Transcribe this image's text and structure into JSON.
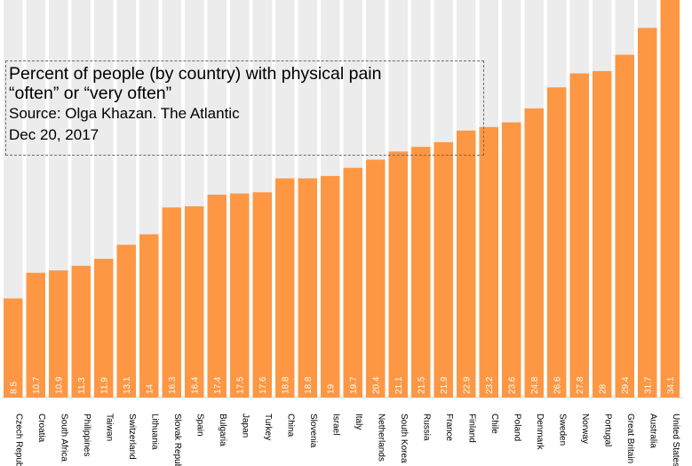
{
  "chart_data": {
    "type": "bar",
    "title_lines": [
      "Percent of people (by country) with physical pain",
      "“often” or “very often”"
    ],
    "source": "Source: Olga Khazan. The Atlantic",
    "date": "Dec 20, 2017",
    "categories": [
      "Czech Republic",
      "Croatia",
      "South Africa",
      "Philippines",
      "Taiwan",
      "Switzerland",
      "Lithuania",
      "Slovak Republic",
      "Spain",
      "Bulgaria",
      "Japan",
      "Turkey",
      "China",
      "Slovenia",
      "Israel",
      "Italy",
      "Netherlands",
      "South Korea",
      "Russia",
      "France",
      "Finland",
      "Chile",
      "Poland",
      "Denmark",
      "Sweden",
      "Norway",
      "Portugal",
      "Great Britain",
      "Australia",
      "United States"
    ],
    "values": [
      8.5,
      10.7,
      10.9,
      11.3,
      11.9,
      13.1,
      14,
      16.3,
      16.4,
      17.4,
      17.5,
      17.6,
      18.8,
      18.8,
      19,
      19.7,
      20.4,
      21.1,
      21.5,
      21.9,
      22.9,
      23.2,
      23.6,
      24.8,
      26.6,
      27.8,
      28,
      29.4,
      31.7,
      34.1
    ],
    "value_labels": [
      "8.5",
      "10.7",
      "10.9",
      "11.3",
      "11.9",
      "13.1",
      "14",
      "16.3",
      "16.4",
      "17.4",
      "17.5",
      "17.6",
      "18.8",
      "18.8",
      "19",
      "19.7",
      "20.4",
      "21.1",
      "21.5",
      "21.9",
      "22.9",
      "23.2",
      "23.6",
      "24.8",
      "26.6",
      "27.8",
      "28",
      "29.4",
      "31.7",
      "34.1"
    ],
    "colors": {
      "bar": "#fd9744",
      "stripe": "#ececec",
      "label": "#ffffff",
      "text": "#000000"
    },
    "legend": "none",
    "grid": false
  }
}
